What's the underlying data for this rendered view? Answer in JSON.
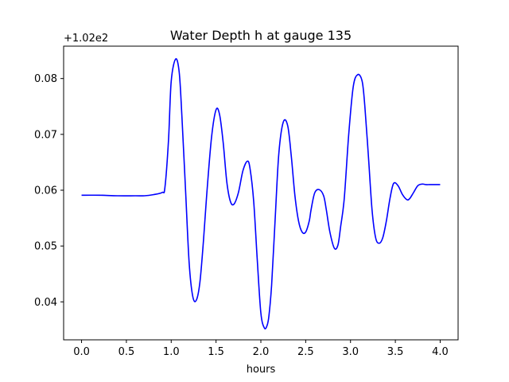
{
  "chart_data": {
    "type": "line",
    "title": "Water Depth h at gauge 135",
    "xlabel": "hours",
    "ylabel": "",
    "offset_label": "+1.02e2",
    "xlim": [
      -0.2,
      4.2
    ],
    "ylim": [
      0.0332,
      0.0858
    ],
    "x_ticks": [
      0.0,
      0.5,
      1.0,
      1.5,
      2.0,
      2.5,
      3.0,
      3.5,
      4.0
    ],
    "x_tick_labels": [
      "0.0",
      "0.5",
      "1.0",
      "1.5",
      "2.0",
      "2.5",
      "3.0",
      "3.5",
      "4.0"
    ],
    "y_ticks": [
      0.04,
      0.05,
      0.06,
      0.07,
      0.08
    ],
    "y_tick_labels": [
      "0.04",
      "0.05",
      "0.06",
      "0.07",
      "0.08"
    ],
    "grid": false,
    "legend": "none",
    "series": [
      {
        "color": "#0000ff",
        "x": [
          0.0,
          0.2,
          0.4,
          0.6,
          0.7,
          0.8,
          0.9,
          0.93,
          0.97,
          1.0,
          1.05,
          1.09,
          1.12,
          1.16,
          1.2,
          1.24,
          1.28,
          1.32,
          1.36,
          1.4,
          1.45,
          1.5,
          1.54,
          1.58,
          1.62,
          1.66,
          1.7,
          1.75,
          1.8,
          1.85,
          1.88,
          1.92,
          1.96,
          2.0,
          2.04,
          2.07,
          2.09,
          2.12,
          2.16,
          2.2,
          2.25,
          2.3,
          2.34,
          2.38,
          2.42,
          2.46,
          2.5,
          2.54,
          2.56,
          2.6,
          2.65,
          2.7,
          2.73,
          2.77,
          2.82,
          2.86,
          2.89,
          2.93,
          2.98,
          3.03,
          3.08,
          3.13,
          3.16,
          3.2,
          3.24,
          3.28,
          3.32,
          3.36,
          3.4,
          3.44,
          3.48,
          3.53,
          3.58,
          3.63,
          3.66,
          3.7,
          3.75,
          3.8,
          3.84,
          3.88,
          3.92,
          3.96,
          4.0
        ],
        "y": [
          0.0591,
          0.0591,
          0.059,
          0.059,
          0.059,
          0.0592,
          0.0596,
          0.0605,
          0.069,
          0.0795,
          0.0835,
          0.081,
          0.073,
          0.06,
          0.047,
          0.041,
          0.0403,
          0.0435,
          0.051,
          0.06,
          0.0695,
          0.0744,
          0.0735,
          0.0685,
          0.0615,
          0.058,
          0.0575,
          0.0596,
          0.0635,
          0.0652,
          0.0638,
          0.058,
          0.0475,
          0.038,
          0.0353,
          0.0358,
          0.0375,
          0.043,
          0.055,
          0.0665,
          0.0722,
          0.0715,
          0.066,
          0.059,
          0.0545,
          0.0525,
          0.0525,
          0.0545,
          0.0565,
          0.0595,
          0.0601,
          0.059,
          0.0565,
          0.0525,
          0.0496,
          0.0502,
          0.0535,
          0.0585,
          0.07,
          0.0785,
          0.0807,
          0.0795,
          0.075,
          0.066,
          0.0565,
          0.0515,
          0.0505,
          0.0515,
          0.0545,
          0.0585,
          0.0612,
          0.0608,
          0.0592,
          0.0583,
          0.0585,
          0.0595,
          0.0608,
          0.0611,
          0.061,
          0.061,
          0.061,
          0.061,
          0.061
        ]
      }
    ]
  }
}
